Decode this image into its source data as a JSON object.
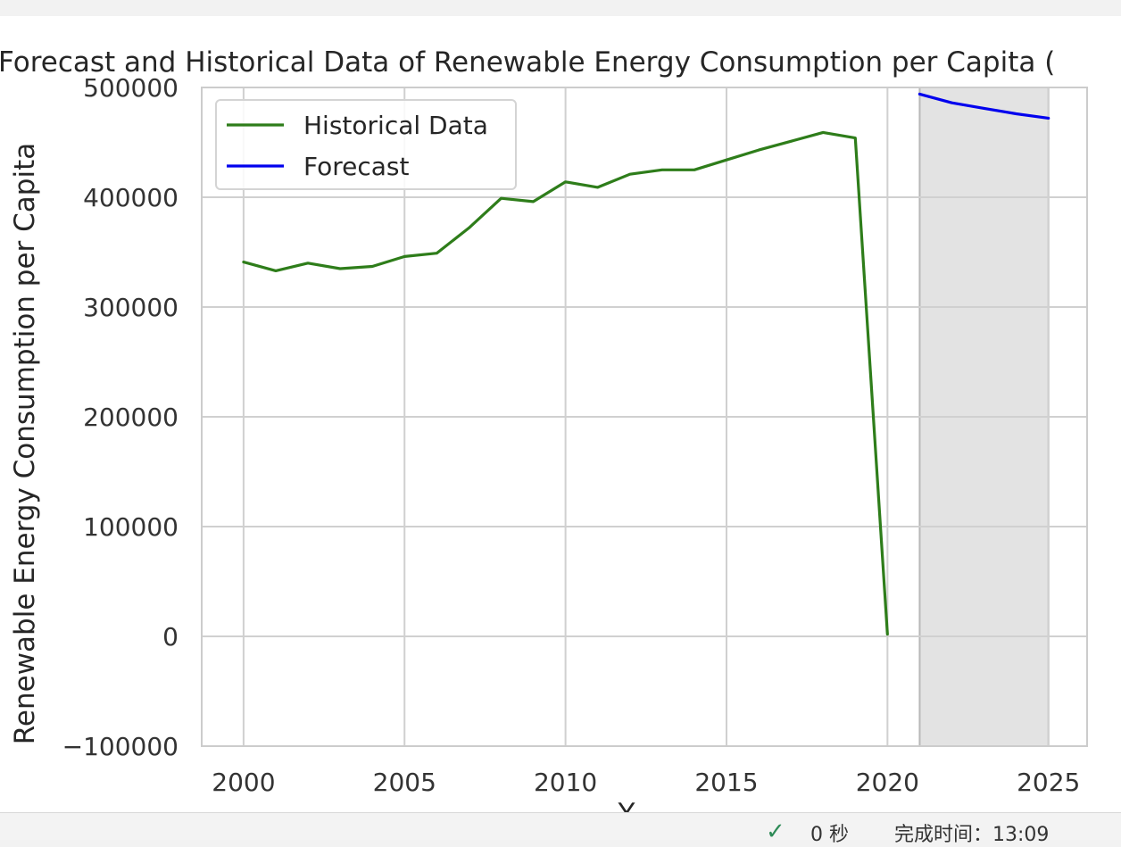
{
  "chart_data": {
    "type": "line",
    "title": "Forecast and Historical Data of Renewable Energy Consumption per Capita (",
    "xlabel": "Y",
    "ylabel": "Renewable Energy Consumption per Capita",
    "xlim": [
      1998.7,
      2026.2
    ],
    "ylim": [
      -100000,
      500000
    ],
    "xticks": [
      2000,
      2005,
      2010,
      2015,
      2020,
      2025
    ],
    "yticks": [
      -100000,
      0,
      100000,
      200000,
      300000,
      400000,
      500000
    ],
    "grid": true,
    "legend_position": "top-left",
    "shaded_region": {
      "x": [
        2021,
        2025
      ],
      "color": "#d3d3d3"
    },
    "series": [
      {
        "name": "Historical Data",
        "color": "#2e7d1a",
        "x": [
          2000,
          2001,
          2002,
          2003,
          2004,
          2005,
          2006,
          2007,
          2008,
          2009,
          2010,
          2011,
          2012,
          2013,
          2014,
          2015,
          2016,
          2017,
          2018,
          2019,
          2020
        ],
        "y": [
          341000,
          333000,
          340000,
          335000,
          337000,
          346000,
          349000,
          372000,
          399000,
          396000,
          414000,
          409000,
          421000,
          425000,
          425000,
          434000,
          443000,
          451000,
          459000,
          454000,
          2000
        ]
      },
      {
        "name": "Forecast",
        "color": "#0000ee",
        "x": [
          2021,
          2022,
          2023,
          2024,
          2025
        ],
        "y": [
          494000,
          486000,
          481000,
          476000,
          472000
        ]
      }
    ]
  },
  "status": {
    "check_icon": "check-icon",
    "duration": "0 秒",
    "completed_at": "完成时间：13:09"
  }
}
